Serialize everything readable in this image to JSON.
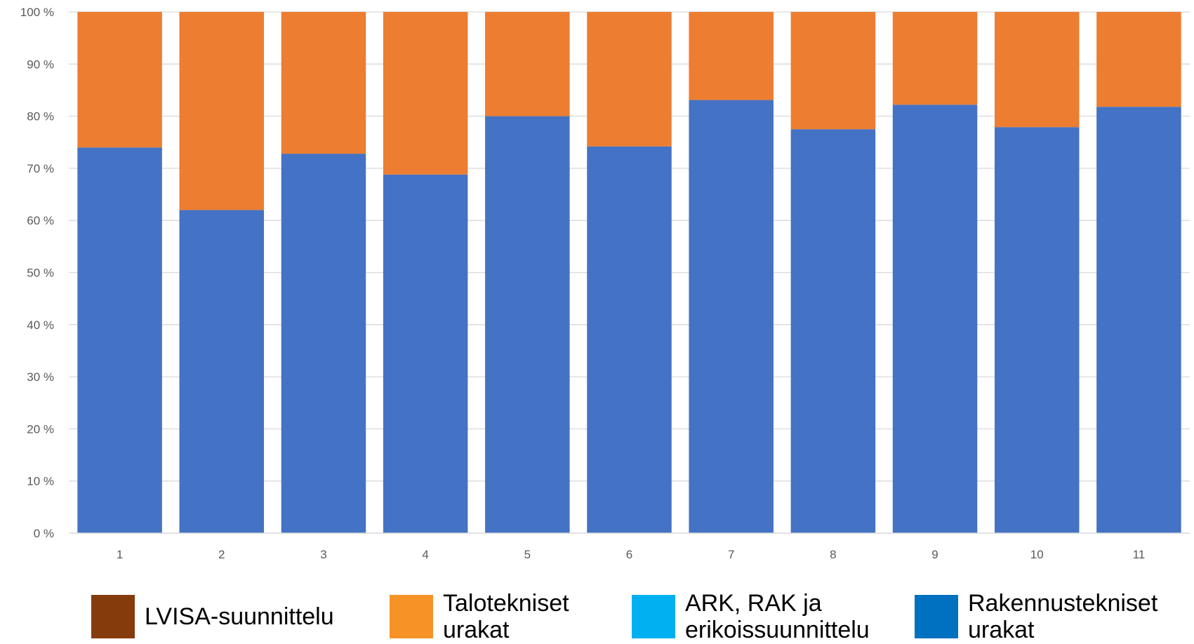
{
  "chart_data": {
    "type": "bar",
    "stacked": true,
    "percent": true,
    "categories": [
      "1",
      "2",
      "3",
      "4",
      "5",
      "6",
      "7",
      "8",
      "9",
      "10",
      "11"
    ],
    "series": [
      {
        "name": "Rakennustekniset urakat",
        "color": "#4472C4",
        "values": [
          74,
          62,
          72.8,
          68.8,
          80,
          74.2,
          83.1,
          77.5,
          82.2,
          77.9,
          81.8
        ]
      },
      {
        "name": "Talotekniset urakat",
        "color": "#ED7D31",
        "values": [
          26,
          38,
          27.2,
          31.2,
          20,
          25.8,
          16.9,
          22.5,
          17.8,
          22.1,
          18.2
        ]
      }
    ],
    "yticks": [
      "0 %",
      "10 %",
      "20 %",
      "30 %",
      "40 %",
      "50 %",
      "60 %",
      "70 %",
      "80 %",
      "90 %",
      "100 %"
    ],
    "ylim": [
      0,
      100
    ],
    "grid": true,
    "legend_position": "bottom"
  },
  "legend": [
    {
      "label_lines": [
        "LVISA-suunnittelu"
      ],
      "color": "#843C0C"
    },
    {
      "label_lines": [
        "Talotekniset",
        "urakat"
      ],
      "color": "#F79226"
    },
    {
      "label_lines": [
        "ARK, RAK ja",
        "erikoissuunnittelu"
      ],
      "color": "#00B0F0"
    },
    {
      "label_lines": [
        "Rakennustekniset",
        "urakat"
      ],
      "color": "#0070C0"
    }
  ]
}
